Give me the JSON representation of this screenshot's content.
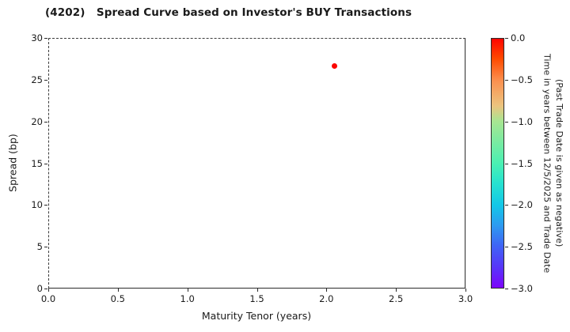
{
  "title": "(4202)   Spread Curve based on Investor's BUY Transactions",
  "chart_data": {
    "type": "scatter",
    "title": "(4202)   Spread Curve based on Investor's BUY Transactions",
    "xlabel": "Maturity Tenor (years)",
    "ylabel": "Spread (bp)",
    "xlim": [
      0.0,
      3.0
    ],
    "ylim": [
      0,
      30
    ],
    "x_ticks": [
      "0.0",
      "0.5",
      "1.0",
      "1.5",
      "2.0",
      "2.5",
      "3.0"
    ],
    "y_ticks": [
      "0",
      "5",
      "10",
      "15",
      "20",
      "25",
      "30"
    ],
    "grid": true,
    "legend": "none",
    "points": [
      {
        "x": 2.06,
        "y": 26.6,
        "color_value": 0.0,
        "color": "#fb0500"
      }
    ],
    "colorbar": {
      "colormap": "rainbow",
      "range_top": 0.0,
      "range_bottom": -3.0,
      "ticks": [
        "0.0",
        "−0.5",
        "−1.0",
        "−1.5",
        "−2.0",
        "−2.5",
        "−3.0"
      ],
      "label_line1": "Time in years between 12/5/2025 and Trade Date",
      "label_line2": "(Past Trade Date is given as negative)",
      "gradient_stops": [
        {
          "pos": 0,
          "color": "#ff0500"
        },
        {
          "pos": 8,
          "color": "#ff4a00"
        },
        {
          "pos": 17,
          "color": "#fb9150"
        },
        {
          "pos": 27,
          "color": "#ecc47f"
        },
        {
          "pos": 33,
          "color": "#a8e591"
        },
        {
          "pos": 50,
          "color": "#4bf0b2"
        },
        {
          "pos": 58,
          "color": "#27e2cf"
        },
        {
          "pos": 67,
          "color": "#13c7e8"
        },
        {
          "pos": 75,
          "color": "#2d9af0"
        },
        {
          "pos": 83,
          "color": "#3f65f5"
        },
        {
          "pos": 92,
          "color": "#5834f9"
        },
        {
          "pos": 100,
          "color": "#7c04fb"
        }
      ]
    }
  }
}
